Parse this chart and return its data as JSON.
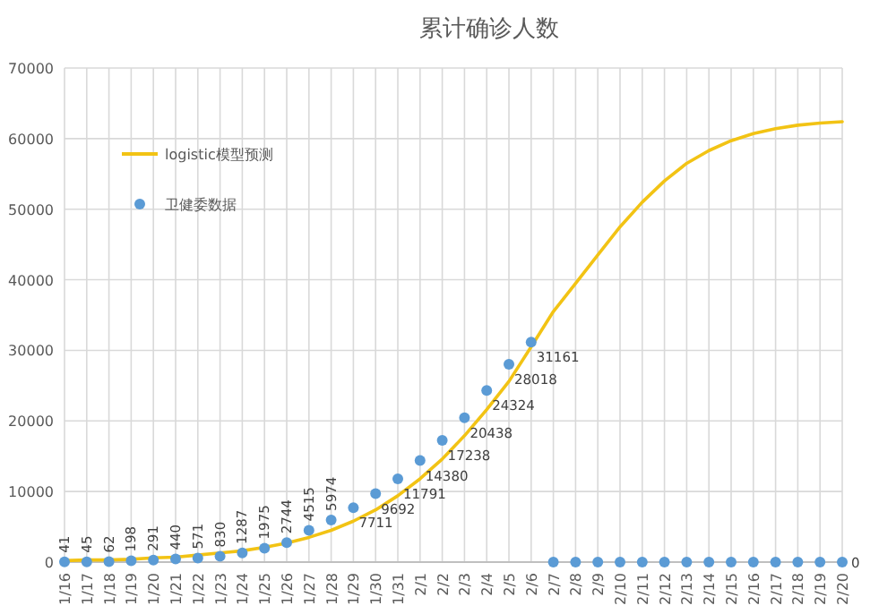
{
  "chart_data": {
    "type": "line",
    "title": "累计确诊人数",
    "categories": [
      "1/16",
      "1/17",
      "1/18",
      "1/19",
      "1/20",
      "1/21",
      "1/22",
      "1/23",
      "1/24",
      "1/25",
      "1/26",
      "1/27",
      "1/28",
      "1/29",
      "1/30",
      "1/31",
      "2/1",
      "2/2",
      "2/3",
      "2/4",
      "2/5",
      "2/6",
      "2/7",
      "2/8",
      "2/9",
      "2/10",
      "2/11",
      "2/12",
      "2/13",
      "2/14",
      "2/15",
      "2/16",
      "2/17",
      "2/18",
      "2/19",
      "2/20"
    ],
    "series": [
      {
        "name": "logistic模型预测",
        "type": "line",
        "color": "#f2c314",
        "marker": "none",
        "values": [
          200,
          300,
          300,
          400,
          600,
          700,
          1000,
          1300,
          1600,
          2100,
          2700,
          3500,
          4500,
          5800,
          7400,
          9400,
          11800,
          14600,
          17900,
          21600,
          25600,
          30500,
          35500,
          39500,
          43500,
          47500,
          51000,
          54000,
          56500,
          58300,
          59700,
          60700,
          61400,
          61900,
          62200,
          62400
        ]
      },
      {
        "name": "卫健委数据",
        "type": "scatter",
        "color": "#5b9bd5",
        "marker": "circle",
        "values": [
          41,
          45,
          62,
          198,
          291,
          440,
          571,
          830,
          1287,
          1975,
          2744,
          4515,
          5974,
          7711,
          9692,
          11791,
          14380,
          17238,
          20438,
          24324,
          28018,
          31161,
          0,
          0,
          0,
          0,
          0,
          0,
          0,
          0,
          0,
          0,
          0,
          0,
          0,
          0
        ],
        "value_labels": [
          "41",
          "45",
          "62",
          "198",
          "291",
          "440",
          "571",
          "830",
          "1287",
          "1975",
          "2744",
          "4515",
          "5974",
          "7711",
          "9692",
          "11791",
          "14380",
          "17238",
          "20438",
          "24324",
          "28018",
          "31161",
          null,
          null,
          null,
          null,
          null,
          null,
          null,
          null,
          null,
          null,
          null,
          null,
          null,
          "0"
        ]
      }
    ],
    "ylim": [
      0,
      70000
    ],
    "yticks": [
      0,
      10000,
      20000,
      30000,
      40000,
      50000,
      60000,
      70000
    ],
    "grid": true,
    "legend": "top left"
  }
}
